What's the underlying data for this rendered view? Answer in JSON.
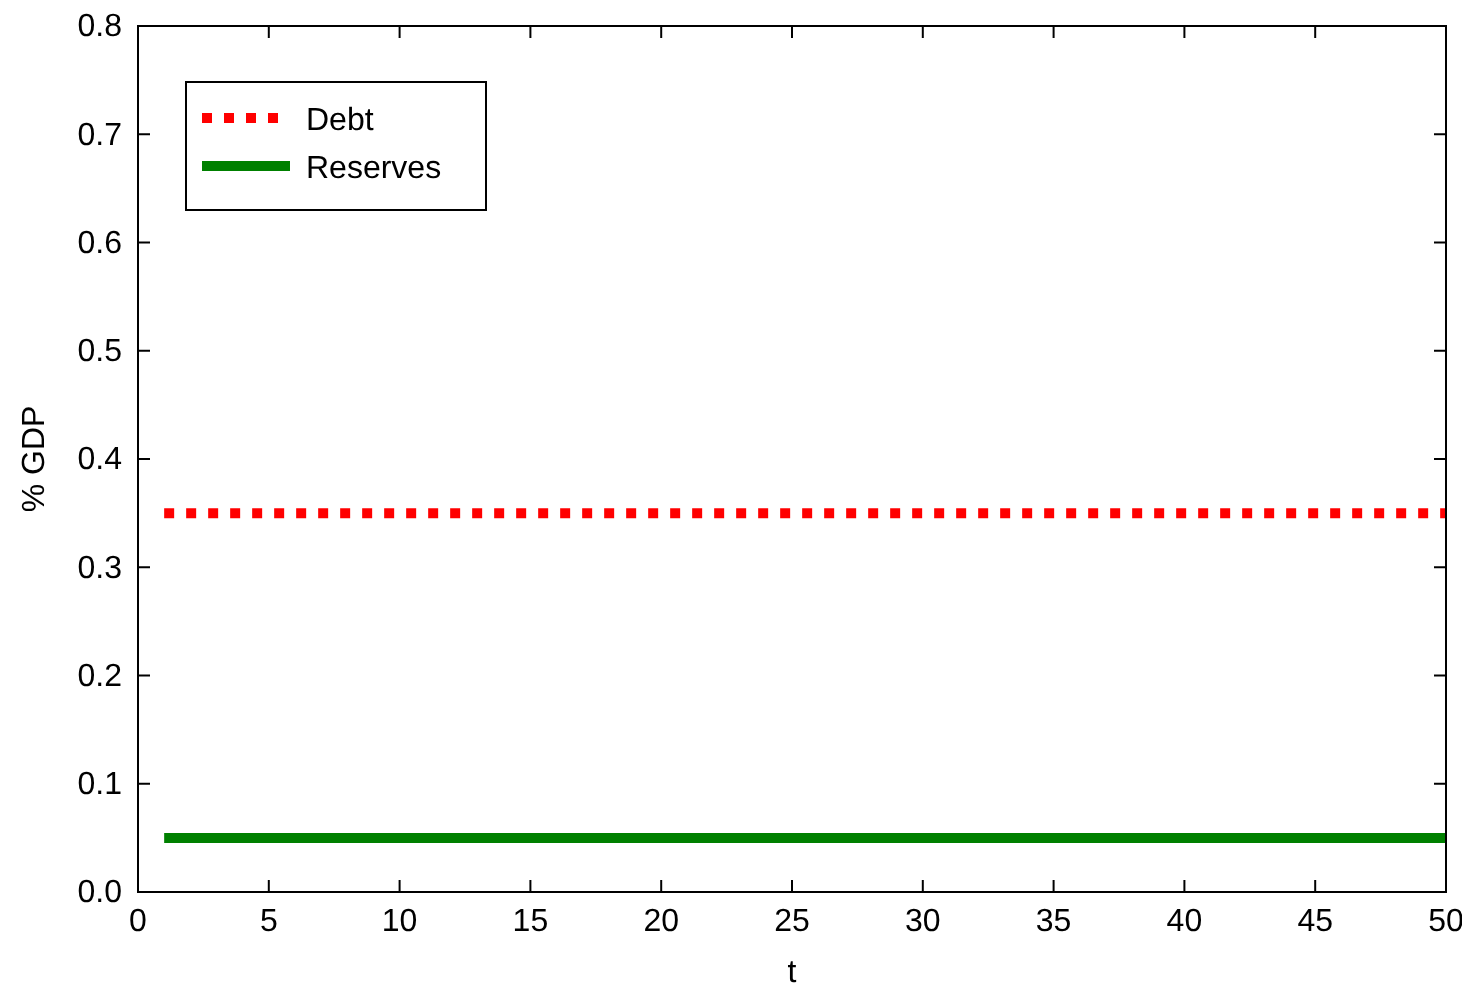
{
  "chart_data": {
    "type": "line",
    "xlabel": "t",
    "ylabel": "% GDP",
    "xlim": [
      0,
      50
    ],
    "xticks": [
      0,
      5,
      10,
      15,
      20,
      25,
      30,
      35,
      40,
      45,
      50
    ],
    "ylim": [
      0,
      0.8
    ],
    "yticks": [
      {
        "value": 0,
        "label": "0.0"
      },
      0.1,
      0.2,
      0.3,
      0.4,
      0.5,
      0.6,
      0.7,
      0.8
    ],
    "x": [
      1,
      50
    ],
    "grid": false,
    "legend": "top left",
    "marker": "none",
    "series": [
      {
        "name": "Debt",
        "color": "#ff0000",
        "line_style": "dotted",
        "values": [
          0.35,
          0.35
        ]
      },
      {
        "name": "Reserves",
        "color": "#008000",
        "line_style": "solid",
        "values": [
          0.05,
          0.05
        ]
      }
    ]
  }
}
